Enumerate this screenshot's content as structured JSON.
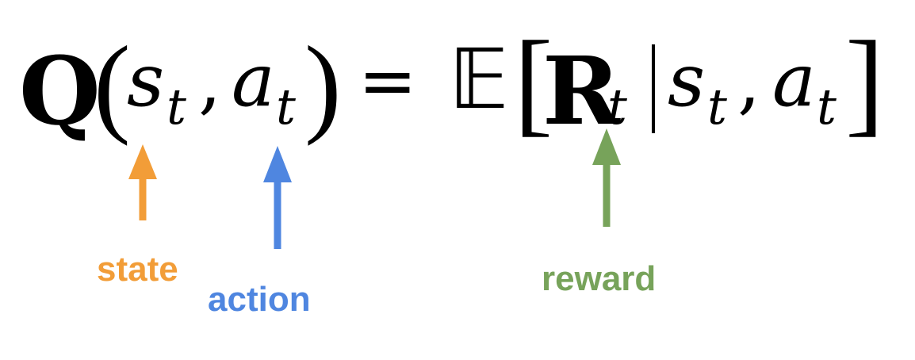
{
  "equation": {
    "q": "Q",
    "open_paren": "(",
    "s1": "s",
    "s1_sub": "t",
    "comma1": ",",
    "a1": "a",
    "a1_sub": "t",
    "close_paren": ")",
    "equals": "=",
    "expect": "𝔼",
    "open_bracket": "[",
    "r": "R",
    "r_sub": "t",
    "s2": "s",
    "s2_sub": "t",
    "comma2": ",",
    "a2": "a",
    "a2_sub": "t",
    "close_bracket": "]"
  },
  "annotations": {
    "state": {
      "label": "state",
      "color": "#f29d38"
    },
    "action": {
      "label": "action",
      "color": "#4f86e0"
    },
    "reward": {
      "label": "reward",
      "color": "#77a35a"
    }
  }
}
